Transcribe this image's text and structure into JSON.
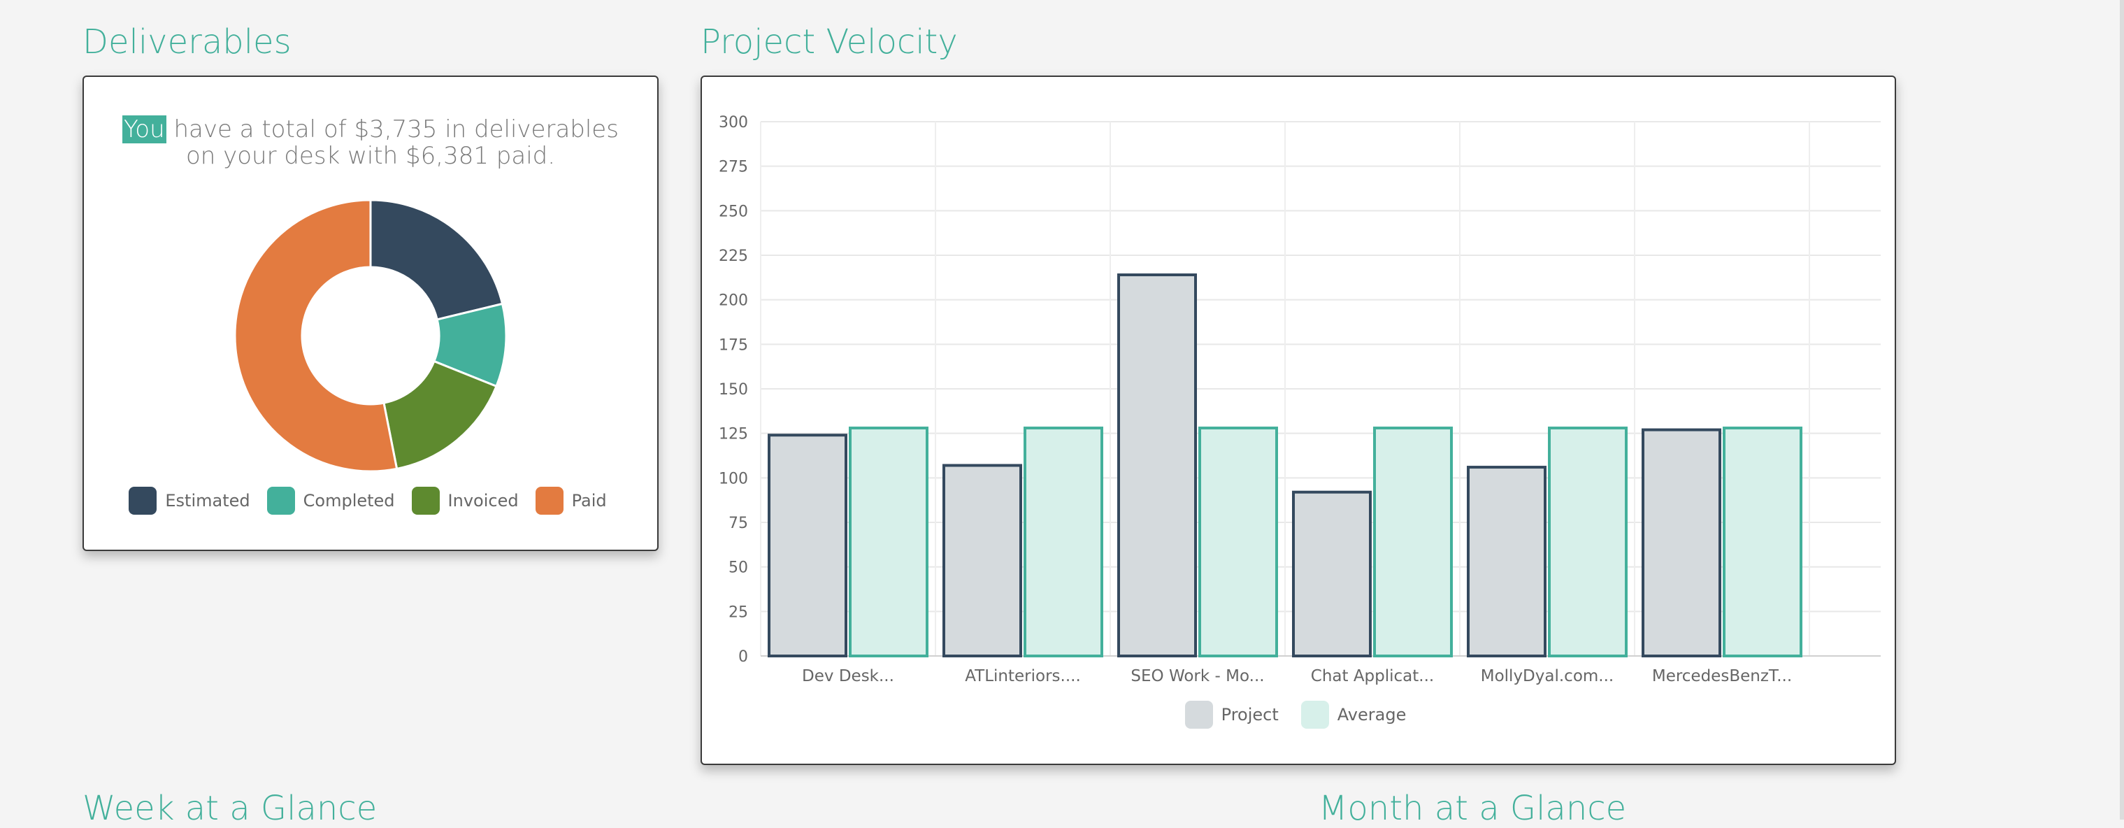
{
  "sections": {
    "deliverables_title": "Deliverables",
    "velocity_title": "Project Velocity",
    "week_title": "Week at a Glance",
    "month_title": "Month at a Glance"
  },
  "deliverables": {
    "summary_highlight": "You",
    "summary_line1_rest": "have a total of $3,735 in deliverables",
    "summary_line2": "on your desk with $6,381 paid."
  },
  "colors": {
    "accent": "#43b09b",
    "estimated": "#34495e",
    "completed": "#43b09b",
    "invoiced": "#5e8a2f",
    "paid": "#e37b40",
    "project_fill": "#d5dadd",
    "project_border": "#34495e",
    "average_fill": "#d7f0ea",
    "average_border": "#43b09b"
  },
  "chart_data": [
    {
      "type": "pie",
      "labels": [
        "Estimated",
        "Completed",
        "Invoiced",
        "Paid"
      ],
      "values": [
        2550,
        1185,
        1900,
        6381
      ],
      "legend_position": "bottom"
    },
    {
      "type": "bar",
      "categories": [
        "Dev Desk...",
        "ATLinteriors....",
        "SEO Work - Mo...",
        "Chat Applicat...",
        "MollyDyal.com...",
        "MercedesBenzT..."
      ],
      "series": [
        {
          "name": "Project",
          "values": [
            124,
            107,
            214,
            92,
            106,
            127
          ]
        },
        {
          "name": "Average",
          "values": [
            128,
            128,
            128,
            128,
            128,
            128
          ]
        }
      ],
      "yticks": [
        "0",
        "25",
        "50",
        "75",
        "100",
        "125",
        "150",
        "175",
        "200",
        "225",
        "250",
        "275",
        "300"
      ],
      "ylim": [
        0,
        300
      ],
      "grid": true,
      "legend_position": "bottom"
    }
  ]
}
